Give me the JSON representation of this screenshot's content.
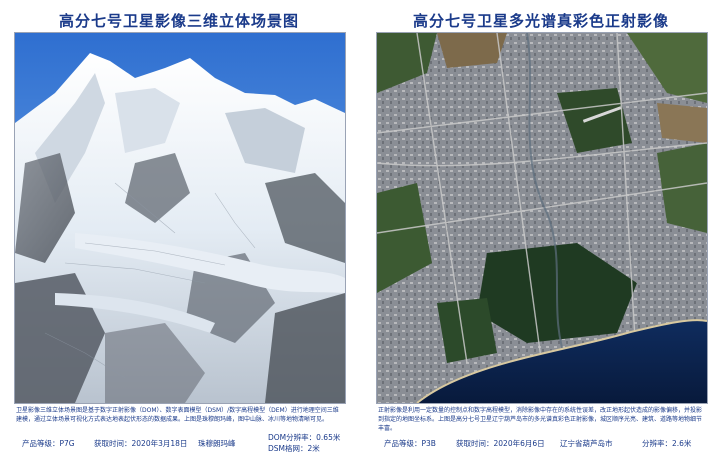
{
  "left_panel": {
    "title": "高分七号卫星影像三维立体场景图",
    "image_label": "3D mountain scene (Everest)",
    "description": "卫星影像三维立体场景图是基于数字正射影像（DOM）、数字表面模型（DSM）/数字高程模型（DEM）进行地理空间三维建模，通过立体场景可视化方式表达地表起伏形态的数据成果。上图是珠穆朗玛峰，图中山脉、冰川等地物清晰可见。",
    "level_label": "产品等级：P7G",
    "date_label": "获取时间：2020年3月18日",
    "place_label": "珠穆朗玛峰",
    "dom_res_label": "DOM分辨率：0.65米",
    "dsm_grid_label": "DSM格网：2米"
  },
  "right_panel": {
    "title": "高分七号卫星多光谱真彩色正射影像",
    "image_label": "True-color orthophoto of Huludao city",
    "description": "正射影像是利用一定数量的控制点和数字高程模型，消除影像中存在的系统性误差，改正地形起伏造成的影像偏移，并投影到指定的地图坐标系。上图是高分七号卫星辽宁葫芦岛市的多光谱真彩色正射影像，城区顺序光亮、建筑、道路等地物细节丰富。",
    "level_label": "产品等级：P3B",
    "date_label": "获取时间：2020年6月6日",
    "place_label": "辽宁省葫芦岛市",
    "res_label": "分辨率：2.6米"
  }
}
